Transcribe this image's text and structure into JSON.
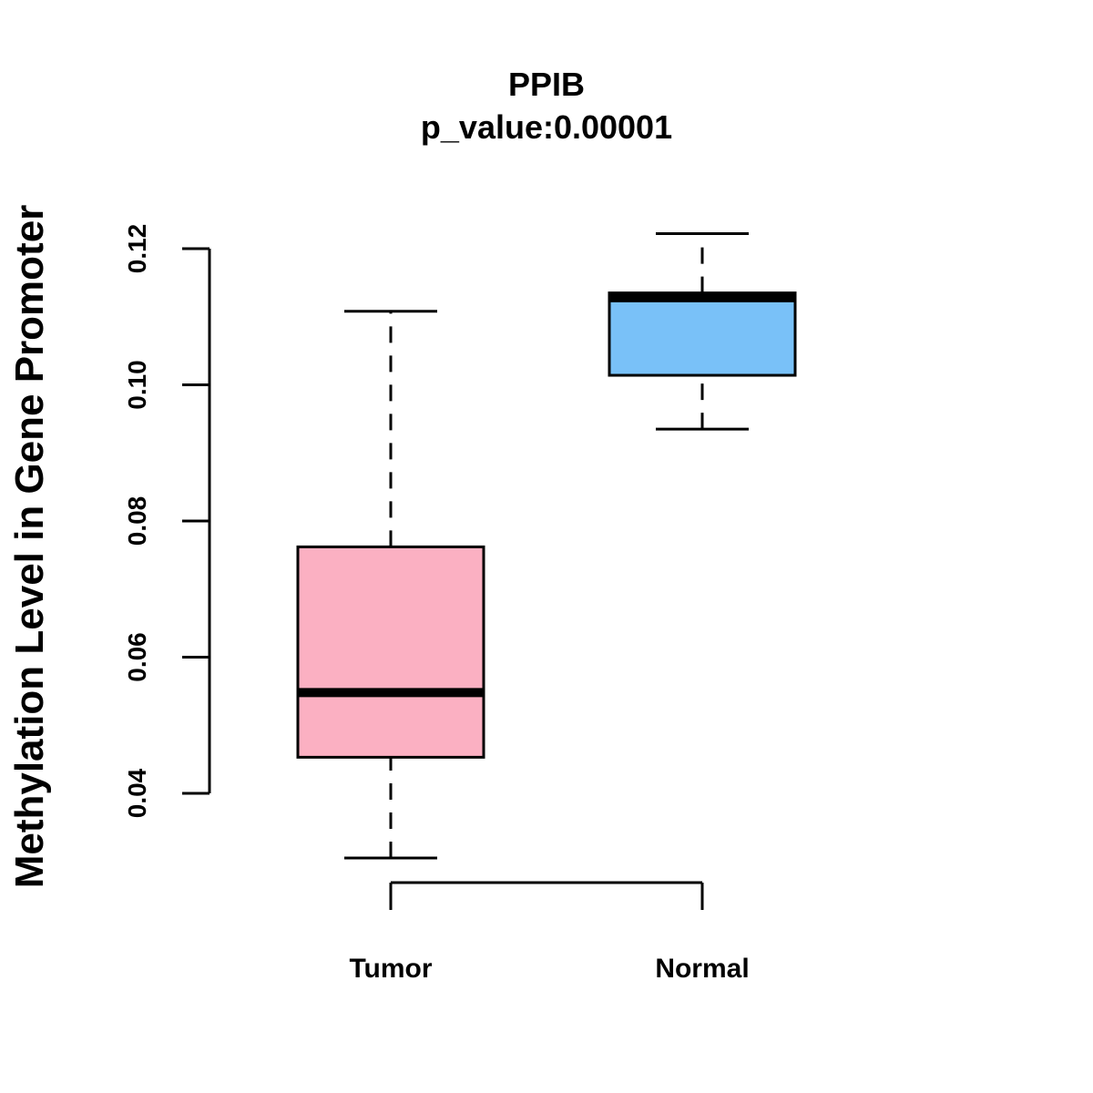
{
  "chart_data": {
    "type": "boxplot",
    "title": "PPIB",
    "subtitle": "p_value:0.00001",
    "xlabel": "",
    "ylabel": "Methylation Level in Gene Promoter",
    "ylim": [
      0.04,
      0.12
    ],
    "yticks": [
      0.04,
      0.06,
      0.08,
      0.1,
      0.12
    ],
    "ytick_labels": [
      "0.04",
      "0.06",
      "0.08",
      "0.10",
      "0.12"
    ],
    "categories": [
      "Tumor",
      "Normal"
    ],
    "series": [
      {
        "name": "Tumor",
        "min": 0.0305,
        "q1": 0.0453,
        "median": 0.0548,
        "q3": 0.0762,
        "max": 0.1108,
        "color": "#FBB0C2"
      },
      {
        "name": "Normal",
        "min": 0.0935,
        "q1": 0.1014,
        "median": 0.1128,
        "q3": 0.1135,
        "max": 0.1222,
        "color": "#79C1F8"
      }
    ]
  }
}
